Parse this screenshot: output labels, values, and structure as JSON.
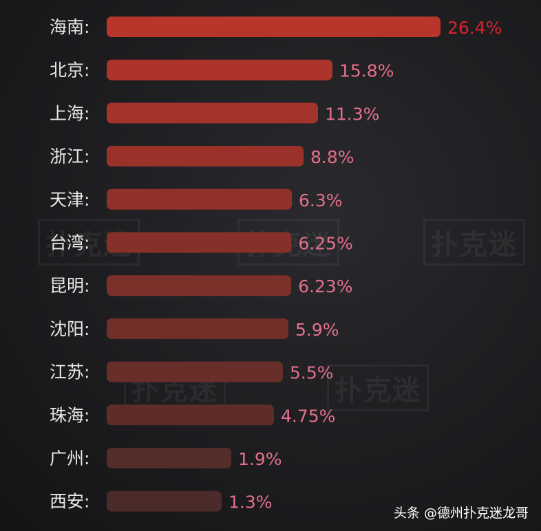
{
  "chart_data": {
    "type": "bar",
    "orientation": "horizontal",
    "categories": [
      "海南",
      "北京",
      "上海",
      "浙江",
      "天津",
      "台湾",
      "昆明",
      "沈阳",
      "江苏",
      "珠海",
      "广州",
      "西安"
    ],
    "values": [
      26.4,
      15.8,
      11.3,
      8.8,
      6.3,
      6.25,
      6.23,
      5.9,
      5.5,
      4.75,
      1.9,
      1.3
    ],
    "value_labels": [
      "26.4%",
      "15.8%",
      "11.3%",
      "8.8%",
      "6.3%",
      "6.25%",
      "6.23%",
      "5.9%",
      "5.5%",
      "4.75%",
      "1.9%",
      "1.3%"
    ],
    "category_suffix": ":",
    "title": "",
    "xlabel": "",
    "ylabel": "",
    "grid": false,
    "bar_color_start": "#b8352b",
    "bar_color_end": "#4a2b29",
    "top_label_color": "#d8222c",
    "label_color": "#e4708a",
    "category_color": "#e8e8e8"
  },
  "watermark": "扑克迷",
  "credit": "头条 @德州扑克迷龙哥"
}
